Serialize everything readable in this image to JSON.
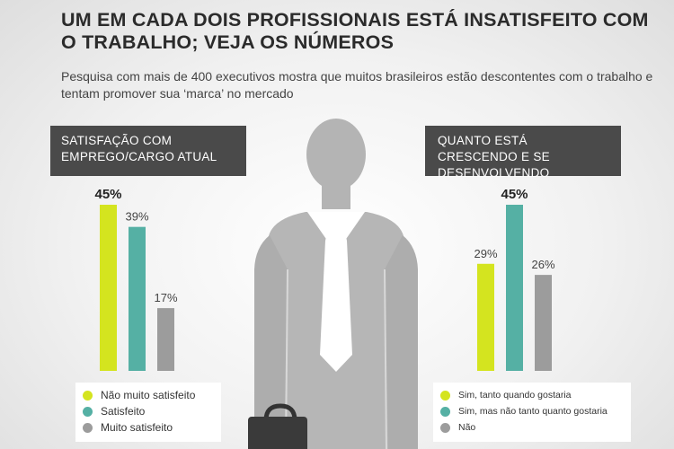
{
  "title": "UM EM CADA DOIS PROFISSIONAIS ESTÁ INSATISFEITO COM O TRABALHO; VEJA OS NÚMEROS",
  "subtitle": "Pesquisa com mais de 400 executivos mostra que muitos brasileiros estão descontentes com o trabalho e tentam promover sua ‘marca’ no mercado",
  "colors": {
    "lime": "#d4e41f",
    "teal": "#55b0a4",
    "gray": "#9c9c9c",
    "panel": "#4a4a4a",
    "figure": "#b3b3b3"
  },
  "chart_data": [
    {
      "type": "bar",
      "title": "SATISFAÇÃO COM EMPREGO/CARGO ATUAL",
      "categories": [
        "Não muito satisfeito",
        "Satisfeito",
        "Muito satisfeito"
      ],
      "values": [
        45,
        39,
        17
      ],
      "labels": [
        "45%",
        "39%",
        "17%"
      ],
      "highlight_index": 0,
      "colors": [
        "#d4e41f",
        "#55b0a4",
        "#9c9c9c"
      ],
      "ylim": [
        0,
        45
      ],
      "legend": "bottom"
    },
    {
      "type": "bar",
      "title": "QUANTO ESTÁ CRESCENDO E SE DESENVOLVENDO",
      "categories": [
        "Sim, tanto quando gostaria",
        "Sim, mas não tanto quanto gostaria",
        "Não"
      ],
      "values": [
        29,
        45,
        26
      ],
      "labels": [
        "29%",
        "45%",
        "26%"
      ],
      "highlight_index": 1,
      "colors": [
        "#d4e41f",
        "#55b0a4",
        "#9c9c9c"
      ],
      "ylim": [
        0,
        45
      ],
      "legend": "bottom"
    }
  ]
}
